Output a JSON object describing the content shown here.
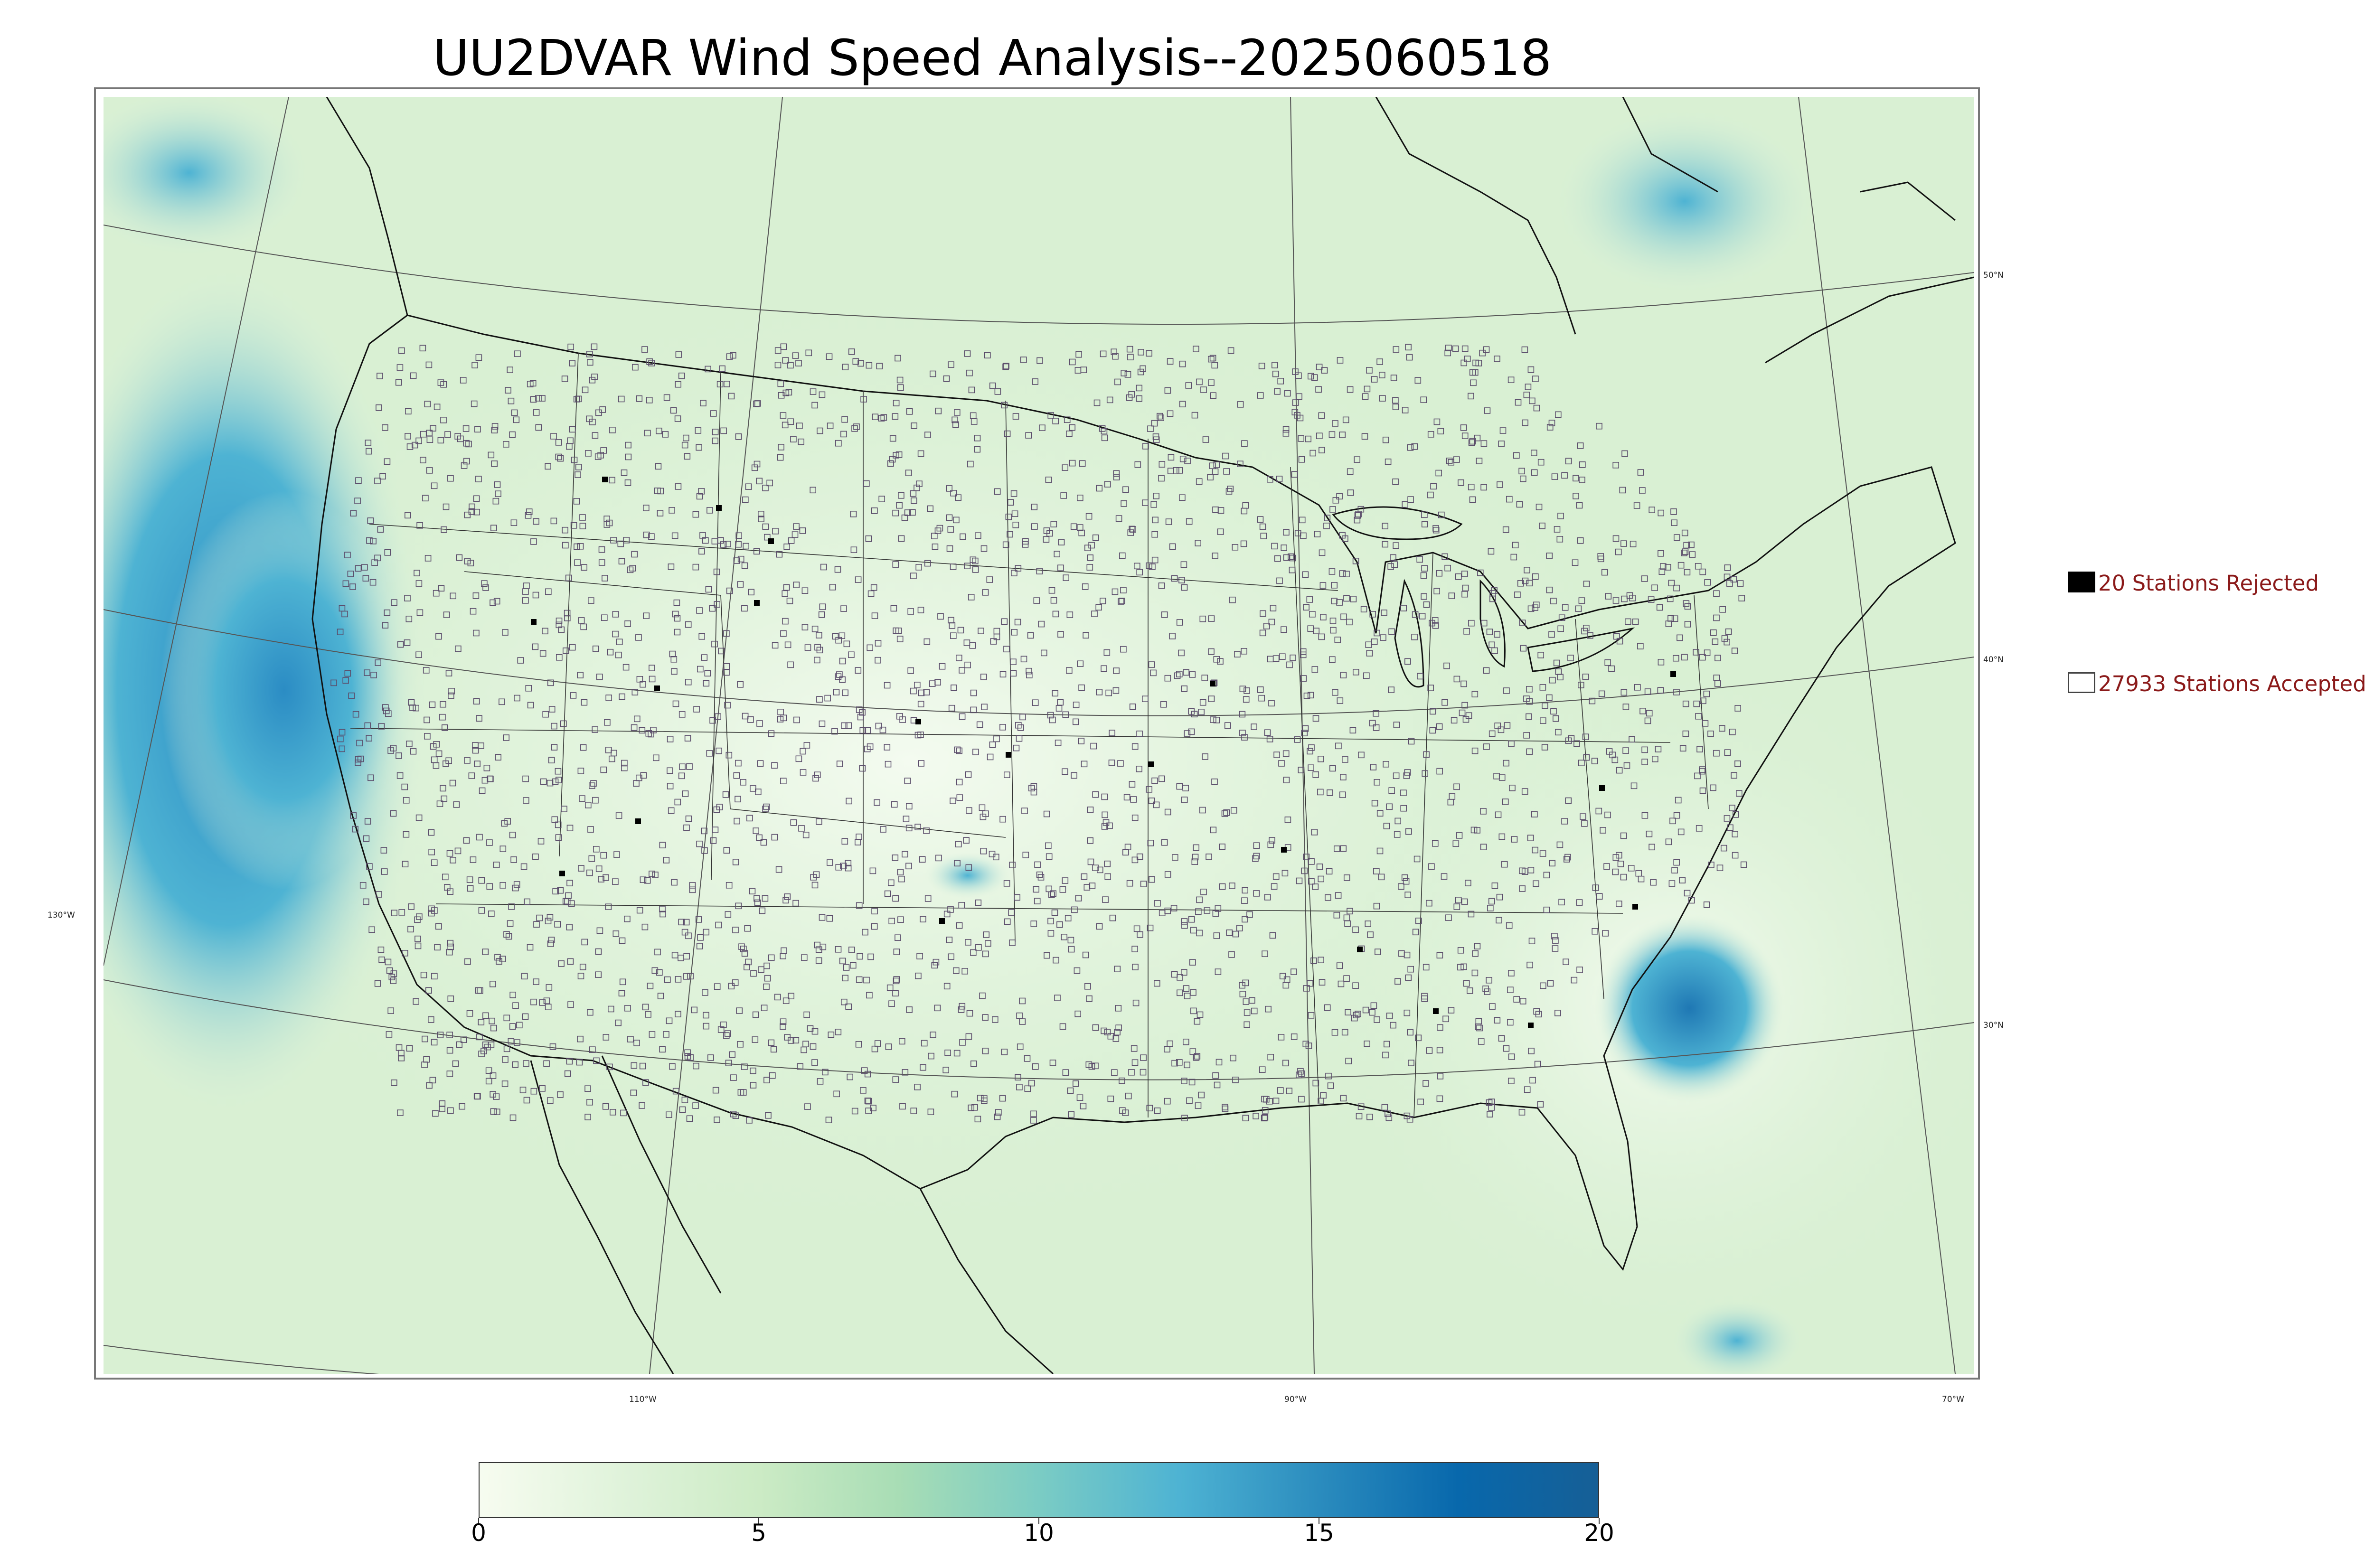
{
  "title": "UU2DVAR Wind Speed Analysis--2025060518",
  "map": {
    "latitude_labels": [
      "50°N",
      "40°N",
      "30°N"
    ],
    "longitude_labels": [
      "130°W",
      "110°W",
      "90°W",
      "70°W"
    ],
    "colors": {
      "land_background": "#dcf1d8",
      "ocean_west_high": "#2b8cc4",
      "coastline": "#111111",
      "border": "#333333",
      "station_marker": "#5b4d6b",
      "rejected_marker": "#000000"
    }
  },
  "legend": {
    "rejected": "20 Stations Rejected",
    "accepted": "27933 Stations Accepted",
    "rejected_color": "#000000",
    "accepted_color": "#ffffff"
  },
  "colorbar": {
    "min": 0,
    "max": 20,
    "ticks": [
      "0",
      "5",
      "10",
      "15",
      "20"
    ],
    "colors": [
      "#f7fcf0",
      "#e0f3db",
      "#ccebc5",
      "#a8ddb5",
      "#7bccc4",
      "#4eb3d3",
      "#2b8cbe",
      "#0868ac",
      "#165f96"
    ]
  }
}
